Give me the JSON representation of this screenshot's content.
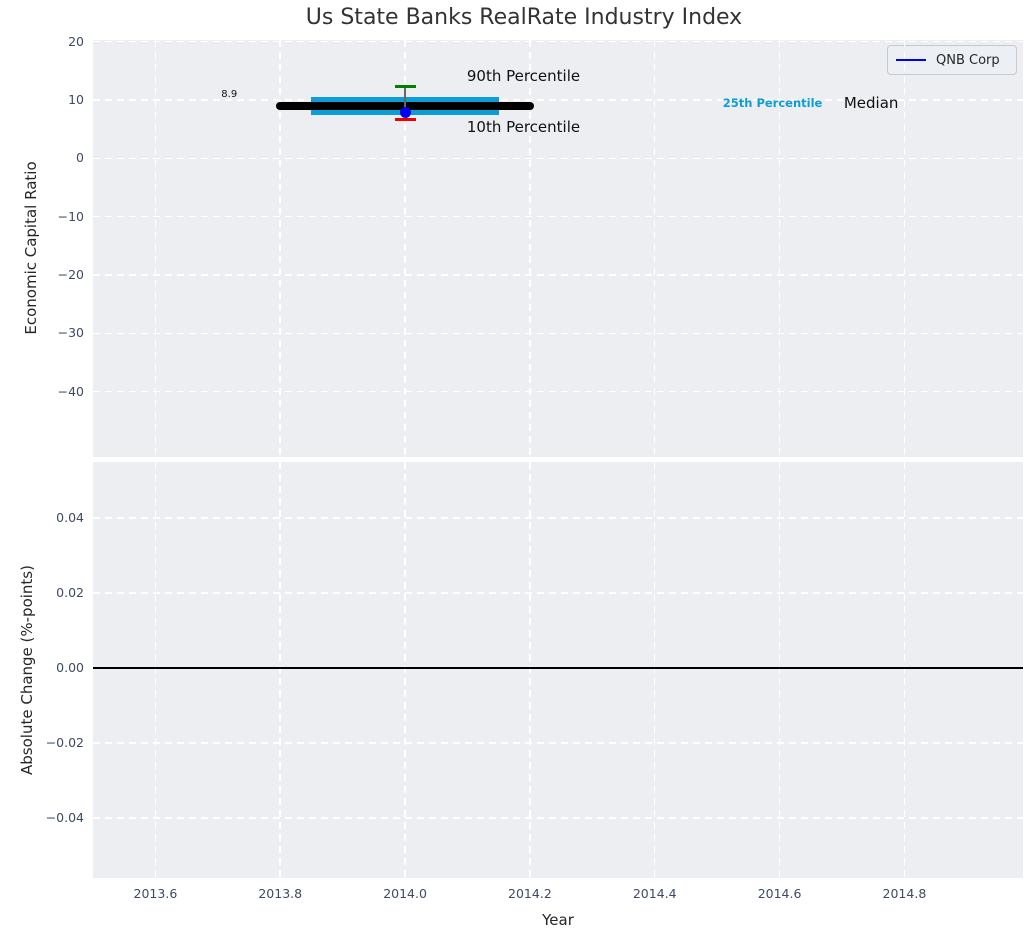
{
  "title": "Us State Banks RealRate Industry Index",
  "legend": {
    "label": "QNB Corp"
  },
  "colors": {
    "figure_bg": "#ffffff",
    "plot_bg": "#eceef1",
    "grid": "#ffffff",
    "tick_label": "#3d4b64",
    "axis_label": "#262626",
    "title": "#333333",
    "median_line": "#000000",
    "iqr_band": "#0d9dd6",
    "p90_cap": "#008000",
    "p10_cap": "#ee0000",
    "company_marker": "#0000ee",
    "errorbar": "#666666",
    "zero_line": "#000000",
    "annotation": "#111111",
    "p25_label": "#0d9dd6"
  },
  "chart_data": [
    {
      "type": "line",
      "title": "Us State Banks RealRate Industry Index",
      "ylabel": "Economic Capital Ratio",
      "xlim": [
        2013.5,
        2014.99
      ],
      "ylim": [
        -51.2,
        20.3
      ],
      "yticks": [
        20,
        10,
        0,
        -10,
        -20,
        -30,
        -40
      ],
      "ytick_labels": [
        "20",
        "10",
        "0",
        "−10",
        "−20",
        "−30",
        "−40"
      ],
      "xticks": [
        2013.6,
        2013.8,
        2014.0,
        2014.2,
        2014.4,
        2014.6,
        2014.8
      ],
      "grid": true,
      "legend_position": "upper right",
      "legend_entries": [
        "QNB Corp"
      ],
      "series": [
        {
          "name": "Median",
          "role": "median_line",
          "x": [
            2013.8,
            2014.2
          ],
          "value": 8.9,
          "value_label": "8.9"
        },
        {
          "name": "25th-75th Percentile band",
          "role": "iqr_band",
          "x": [
            2013.85,
            2014.15
          ],
          "y_low": 7.4,
          "y_high": 10.5
        },
        {
          "name": "90th Percentile",
          "role": "p90_cap",
          "x": 2014.0,
          "value": 12.4
        },
        {
          "name": "10th Percentile",
          "role": "p10_cap",
          "x": 2014.0,
          "value": 6.6
        },
        {
          "name": "QNB Corp",
          "role": "company_marker",
          "x": 2014.0,
          "value": 7.9,
          "marker": "circle"
        }
      ],
      "annotations": [
        {
          "text": "8.9",
          "x": 2013.731,
          "y": 10.7,
          "anchor": "end",
          "size": 10,
          "role": "annotation"
        },
        {
          "text": "90th Percentile",
          "x": 2014.099,
          "y": 13.8,
          "anchor": "start",
          "size": 15,
          "role": "annotation"
        },
        {
          "text": "10th Percentile",
          "x": 2014.099,
          "y": 5.0,
          "anchor": "start",
          "size": 15,
          "role": "annotation"
        },
        {
          "text": "25th Percentile",
          "x": 2014.509,
          "y": 9.2,
          "anchor": "start",
          "size": 11.5,
          "bold": true,
          "role": "p25_label"
        },
        {
          "text": "Median",
          "x": 2014.703,
          "y": 9.2,
          "anchor": "start",
          "size": 15,
          "role": "annotation"
        }
      ]
    },
    {
      "type": "line",
      "ylabel": "Absolute Change (%-points)",
      "xlabel": "Year",
      "xlim": [
        2013.5,
        2014.99
      ],
      "ylim": [
        -0.056,
        0.0549
      ],
      "yticks": [
        0.04,
        0.02,
        0.0,
        -0.02,
        -0.04
      ],
      "ytick_labels": [
        "0.04",
        "0.02",
        "0.00",
        "−0.02",
        "−0.04"
      ],
      "xticks": [
        2013.6,
        2013.8,
        2014.0,
        2014.2,
        2014.4,
        2014.6,
        2014.8
      ],
      "xtick_labels": [
        "2013.6",
        "2013.8",
        "2014.0",
        "2014.2",
        "2014.4",
        "2014.6",
        "2014.8"
      ],
      "grid": true,
      "zero_line": 0.0,
      "series": []
    }
  ]
}
